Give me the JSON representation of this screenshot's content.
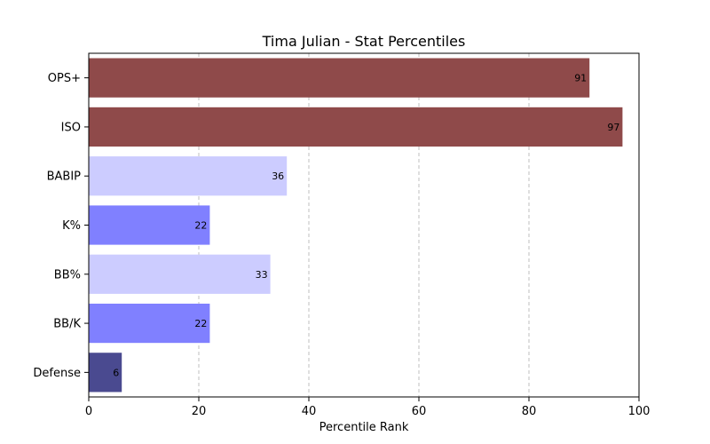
{
  "chart_data": {
    "type": "bar",
    "orientation": "horizontal",
    "title": "Tima Julian - Stat Percentiles",
    "xlabel": "Percentile Rank",
    "ylabel": "",
    "xlim": [
      0,
      100
    ],
    "xticks": [
      0,
      20,
      40,
      60,
      80,
      100
    ],
    "grid": "x-dashed",
    "categories": [
      "OPS+",
      "ISO",
      "BABIP",
      "K%",
      "BB%",
      "BB/K",
      "Defense"
    ],
    "values": [
      91,
      97,
      36,
      22,
      33,
      22,
      6
    ],
    "colors": [
      "#8f4a4a",
      "#8f4a4a",
      "#ccccff",
      "#8080ff",
      "#ccccff",
      "#8080ff",
      "#4a4a90"
    ]
  }
}
